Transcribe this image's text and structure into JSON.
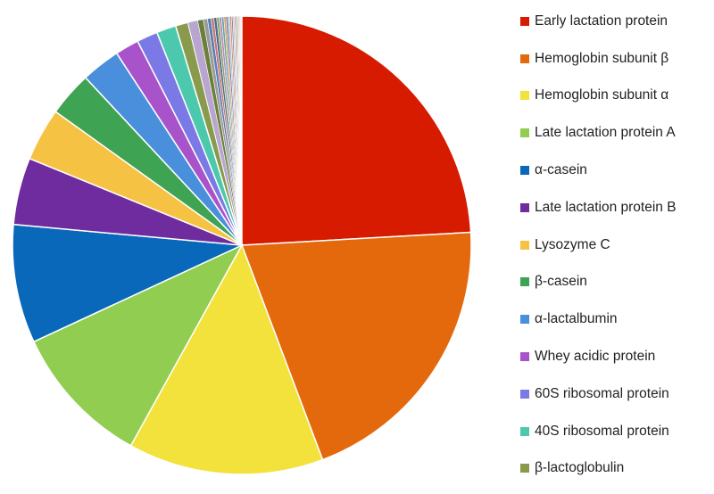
{
  "chart_data": {
    "type": "pie",
    "slices": [
      {
        "label": "Early lactation protein",
        "value": 24.5,
        "color": "#d61b00"
      },
      {
        "label": "Hemoglobin subunit β",
        "value": 20.5,
        "color": "#e4680c"
      },
      {
        "label": "Hemoglobin subunit α",
        "value": 14.0,
        "color": "#f2e23b"
      },
      {
        "label": "Late lactation protein A",
        "value": 10.2,
        "color": "#91cd50"
      },
      {
        "label": "α-casein",
        "value": 8.5,
        "color": "#0a68ba"
      },
      {
        "label": "Late lactation protein B",
        "value": 4.8,
        "color": "#6f2c9e"
      },
      {
        "label": "Lysozyme C",
        "value": 3.8,
        "color": "#f6c244"
      },
      {
        "label": "β-casein",
        "value": 3.2,
        "color": "#3ea353"
      },
      {
        "label": "α-lactalbumin",
        "value": 2.8,
        "color": "#4a8fdc"
      },
      {
        "label": "Whey acidic protein",
        "value": 1.7,
        "color": "#a953cb"
      },
      {
        "label": "60S ribosomal protein",
        "value": 1.5,
        "color": "#7b79e6"
      },
      {
        "label": "40S ribosomal protein",
        "value": 1.4,
        "color": "#4cc9ad"
      },
      {
        "label": "β-lactoglobulin",
        "value": 0.9,
        "color": "#899a4c"
      },
      {
        "value": 0.7,
        "color": "#b9a6d0"
      },
      {
        "value": 0.4,
        "color": "#6a7f3a"
      },
      {
        "value": 0.3,
        "color": "#9a9a9a"
      },
      {
        "value": 0.25,
        "color": "#5b7db8"
      },
      {
        "value": 0.2,
        "color": "#c7756a"
      },
      {
        "value": 0.2,
        "color": "#4a6b8c"
      },
      {
        "value": 0.18,
        "color": "#8aa36b"
      },
      {
        "value": 0.17,
        "color": "#b48bc2"
      },
      {
        "value": 0.16,
        "color": "#6aa4a0"
      },
      {
        "value": 0.15,
        "color": "#c9a65a"
      },
      {
        "value": 0.14,
        "color": "#7d6fa8"
      },
      {
        "value": 0.13,
        "color": "#a3c0d9"
      },
      {
        "value": 0.12,
        "color": "#cf8f7a"
      },
      {
        "value": 0.11,
        "color": "#8c8c8c"
      },
      {
        "value": 0.1,
        "color": "#d4b0c8"
      },
      {
        "value": 0.1,
        "color": "#b5b5b5"
      },
      {
        "value": 0.09,
        "color": "#a0887a"
      },
      {
        "value": 0.08,
        "color": "#c0c0c0"
      },
      {
        "value": 0.08,
        "color": "#d9c3a5"
      },
      {
        "value": 0.07,
        "color": "#cccccc"
      },
      {
        "value": 0.06,
        "color": "#e0d0d0"
      },
      {
        "value": 0.05,
        "color": "#d8d8d8"
      }
    ],
    "legend_position": "right"
  }
}
